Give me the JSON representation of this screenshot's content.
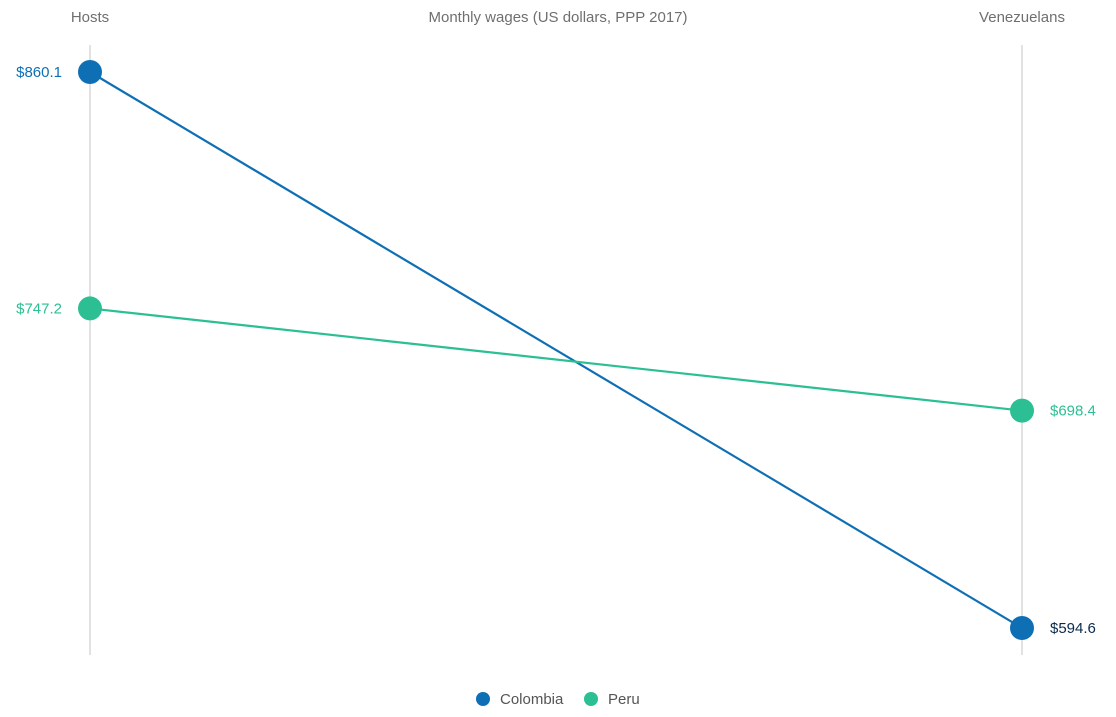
{
  "chart_data": {
    "type": "line",
    "title": "Monthly wages (US dollars, PPP 2017)",
    "categories": [
      "Hosts",
      "Venezuelans"
    ],
    "series": [
      {
        "name": "Colombia",
        "values": [
          860.1,
          594.6
        ],
        "labels": [
          "$860.1",
          "$594.6"
        ],
        "color": "#0f6fb5",
        "label_colors": [
          "#0f6fb5",
          "#0b2a4a"
        ]
      },
      {
        "name": "Peru",
        "values": [
          747.2,
          698.4
        ],
        "labels": [
          "$747.2",
          "$698.4"
        ],
        "color": "#2bbf93",
        "label_colors": [
          "#2bbf93",
          "#2bbf93"
        ]
      }
    ],
    "grid": false,
    "legend_position": "bottom-center",
    "axis_line_color": "#e2e2e2",
    "text_color": "#6f6f6f"
  }
}
